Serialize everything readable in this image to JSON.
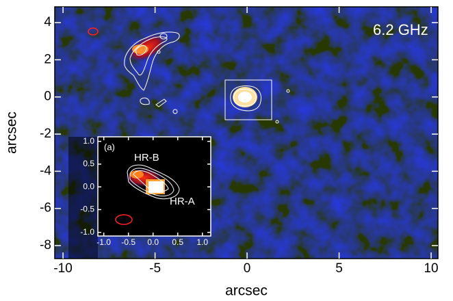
{
  "chart_data": [
    {
      "type": "image",
      "annotations": [
        "6.2 GHz"
      ],
      "xlabel": "arcsec",
      "ylabel": "arcsec",
      "xlim": [
        -10.45,
        10.37
      ],
      "ylim": [
        -8.7,
        4.85
      ],
      "xticks": [
        -10,
        -5,
        0,
        5,
        10
      ],
      "yticks": [
        -8,
        -6,
        -4,
        -2,
        0,
        2,
        4
      ]
    },
    {
      "type": "image",
      "annotations": [
        "(a)",
        "HR-B",
        "HR-A"
      ],
      "xlim": [
        -1.12,
        1.17
      ],
      "ylim": [
        -1.08,
        1.1
      ],
      "xticks": [
        {
          "value": -1.0,
          "label": "-1.0"
        },
        {
          "value": -0.5,
          "label": "-0.5"
        },
        {
          "value": 0.0,
          "label": "0.0"
        },
        {
          "value": 0.5,
          "label": "0.5"
        },
        {
          "value": 1.0,
          "label": "1.0"
        }
      ],
      "yticks": [
        {
          "value": -1.0,
          "label": "-1.0"
        },
        {
          "value": -0.5,
          "label": "-0.5"
        },
        {
          "value": 0.0,
          "label": "0.0"
        },
        {
          "value": 0.5,
          "label": "0.5"
        },
        {
          "value": 1.0,
          "label": "1.0"
        }
      ]
    }
  ]
}
